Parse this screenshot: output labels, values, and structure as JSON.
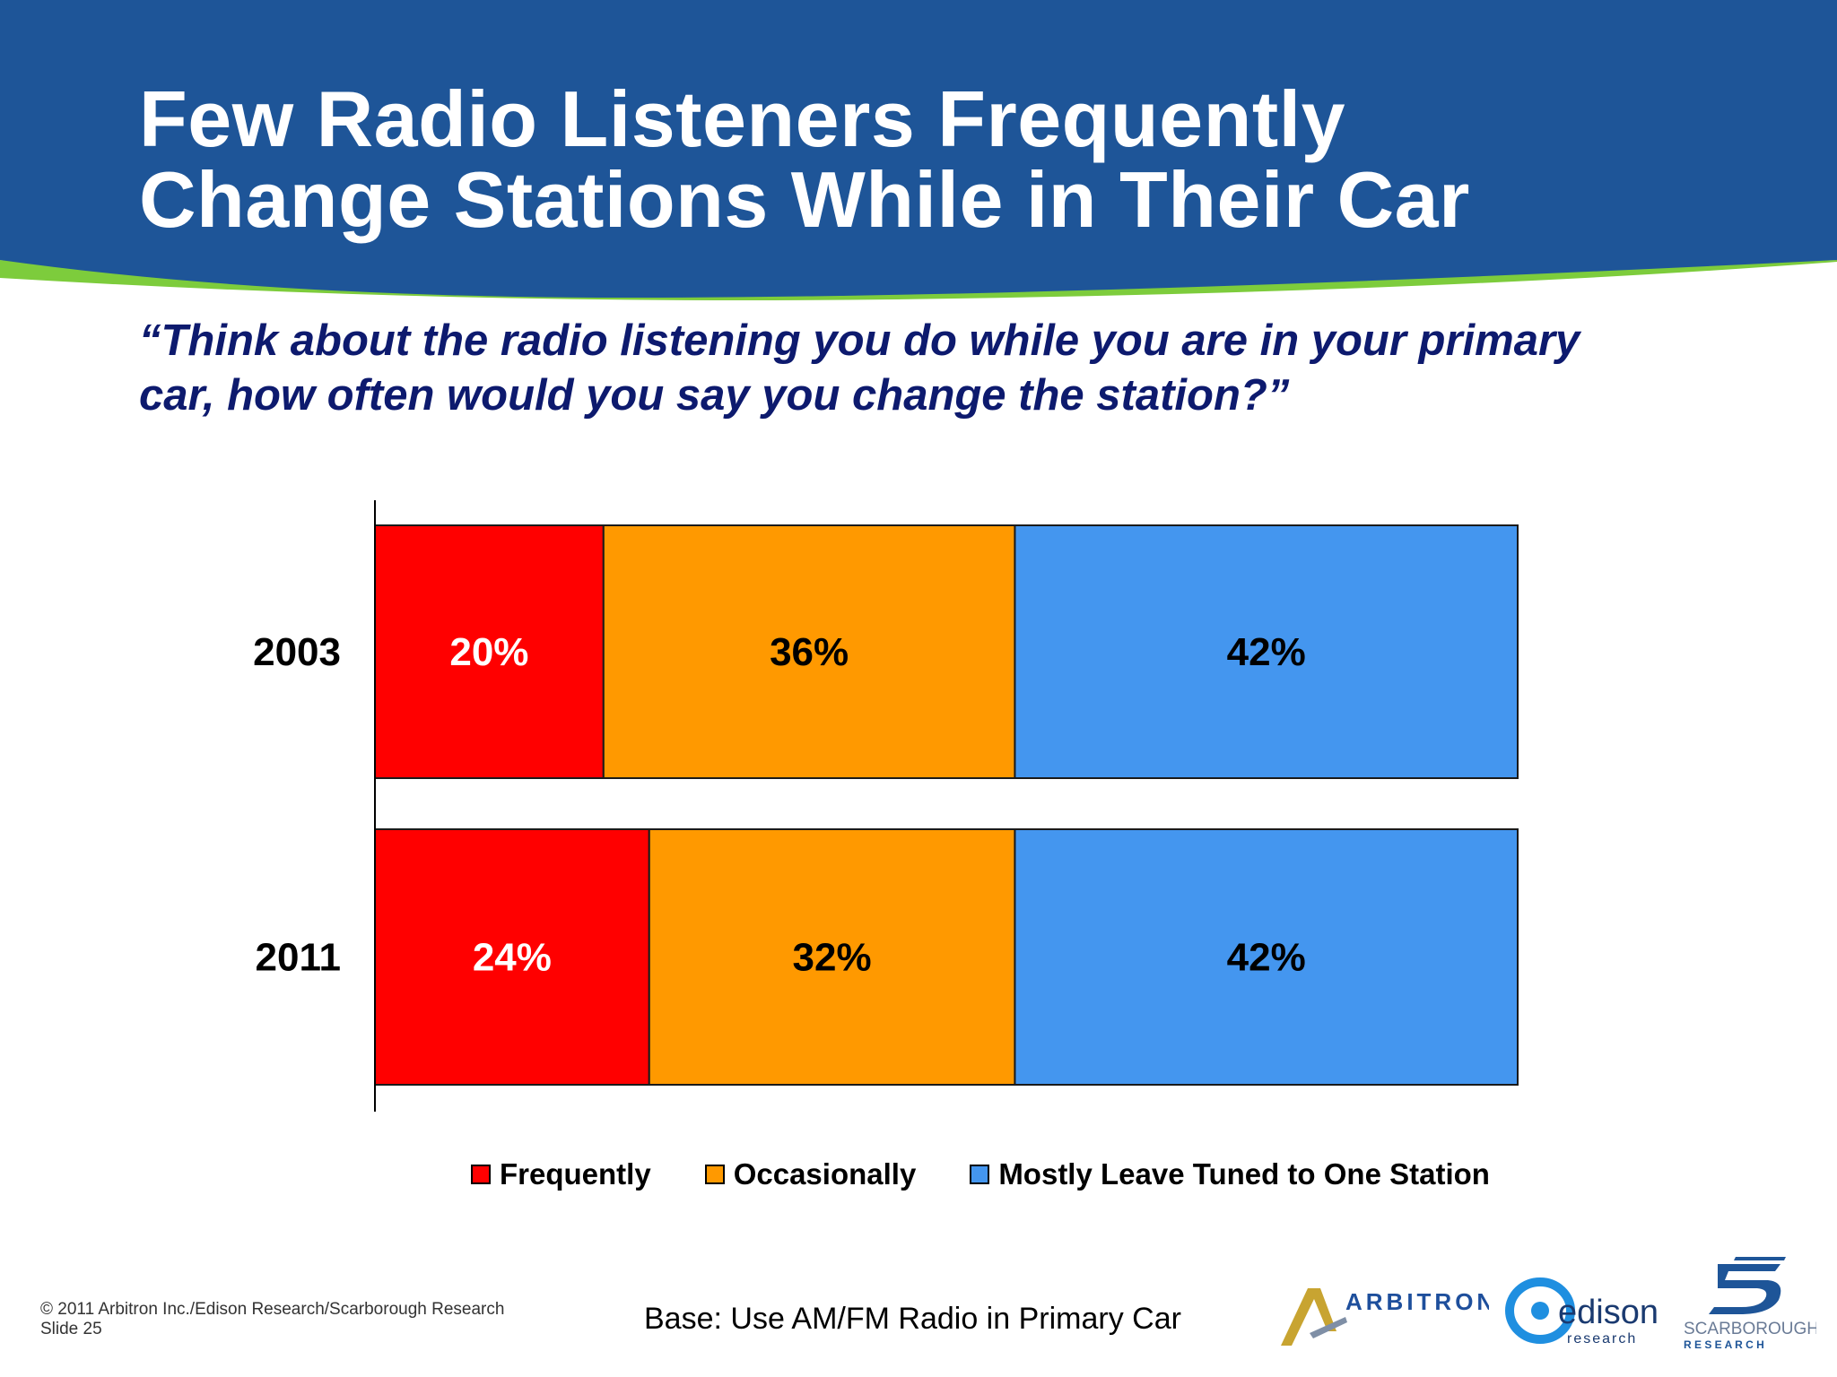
{
  "slide": {
    "title_lines": [
      "Few Radio Listeners Frequently",
      "Change Stations While in Their Car"
    ],
    "question_lines": [
      "“Think about the radio listening you do while you are in your primary",
      "car, how often would you say you change the station?”"
    ],
    "copyright_lines": [
      "© 2011 Arbitron Inc./Edison Research/Scarborough Research",
      "Slide 25"
    ],
    "base_note": "Base: Use AM/FM Radio in Primary Car",
    "logos": {
      "arbitron": "ARBITRON",
      "edison": "edison",
      "edison_sub": "research",
      "scarborough": "SCARBOROUGH",
      "scarborough_sub": "R E S E A R C H"
    }
  },
  "colors": {
    "header": "#1e5598",
    "accent_green": "#7dcc3c",
    "frequently": "#ff0000",
    "occasionally": "#ff9900",
    "mostly": "#4496ef"
  },
  "chart_data": {
    "type": "bar",
    "orientation": "horizontal",
    "stacked": true,
    "categories": [
      "2003",
      "2011"
    ],
    "series": [
      {
        "name": "Frequently",
        "values": [
          20,
          24
        ],
        "labels": [
          "20%",
          "24%"
        ],
        "color": "#ff0000",
        "label_color": "#ffffff"
      },
      {
        "name": "Occasionally",
        "values": [
          36,
          32
        ],
        "labels": [
          "36%",
          "32%"
        ],
        "color": "#ff9900",
        "label_color": "#000000"
      },
      {
        "name": "Mostly Leave Tuned to One Station",
        "values": [
          42,
          42
        ],
        "labels": [
          "42%",
          "42%"
        ],
        "color": "#4496ef",
        "label_color": "#000000"
      }
    ],
    "xlim": [
      0,
      100
    ],
    "title": "",
    "xlabel": "",
    "ylabel": "",
    "grid": false,
    "legend": "bottom"
  }
}
